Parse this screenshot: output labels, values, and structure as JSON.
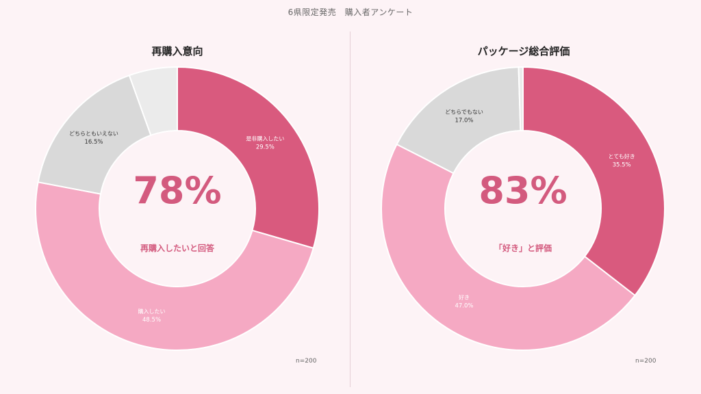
{
  "page_title": "6県限定発売　購入者アンケート",
  "sample_size_left": "n=200",
  "sample_size_right": "n=200",
  "chart_data": [
    {
      "type": "pie",
      "title": "再購入意向",
      "center_value": "78%",
      "center_caption": "再購入したいと回答",
      "slices": [
        {
          "label": "是非購入したい",
          "value": 29.5,
          "value_text": "29.5%",
          "color": "#d95a7e",
          "label_color": "#ffffff"
        },
        {
          "label": "購入したい",
          "value": 48.5,
          "value_text": "48.5%",
          "color": "#f5a9c3",
          "label_color": "#ffffff"
        },
        {
          "label": "どちらともいえない",
          "value": 16.5,
          "value_text": "16.5%",
          "color": "#d9d9d9",
          "label_color": "#333333"
        },
        {
          "label": "",
          "value": 5.5,
          "value_text": "",
          "color": "#ebebeb",
          "label_color": "#333333"
        }
      ]
    },
    {
      "type": "pie",
      "title": "パッケージ総合評価",
      "center_value": "83%",
      "center_caption": "「好き」と評価",
      "slices": [
        {
          "label": "とても好き",
          "value": 35.5,
          "value_text": "35.5%",
          "color": "#d95a7e",
          "label_color": "#ffffff"
        },
        {
          "label": "好き",
          "value": 47.0,
          "value_text": "47.0%",
          "color": "#f5a9c3",
          "label_color": "#ffffff"
        },
        {
          "label": "どちらでもない",
          "value": 17.0,
          "value_text": "17.0%",
          "color": "#d9d9d9",
          "label_color": "#333333"
        },
        {
          "label": "",
          "value": 0.5,
          "value_text": "",
          "color": "#ebebeb",
          "label_color": "#333333"
        }
      ]
    }
  ],
  "colors": {
    "center_text": "#d35a7e",
    "background": "#fdf3f6"
  }
}
